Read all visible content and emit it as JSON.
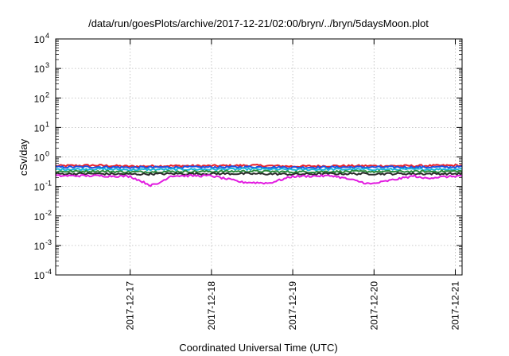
{
  "chart_data": {
    "type": "line",
    "title": "/data/run/goesPlots/archive/2017-12-21/02:00/bryn/../bryn/5daysMoon.plot",
    "xlabel": "Coordinated Universal Time (UTC)",
    "ylabel": "cSv/day",
    "yscale": "log",
    "ylim": [
      0.0001,
      10000
    ],
    "xlim": [
      "2017-12-16T02:00",
      "2017-12-21T02:00"
    ],
    "y_ticks": [
      {
        "base": "10",
        "exp": "-4",
        "value": 0.0001
      },
      {
        "base": "10",
        "exp": "-3",
        "value": 0.001
      },
      {
        "base": "10",
        "exp": "-2",
        "value": 0.01
      },
      {
        "base": "10",
        "exp": "-1",
        "value": 0.1
      },
      {
        "base": "10",
        "exp": "0",
        "value": 1
      },
      {
        "base": "10",
        "exp": "1",
        "value": 10
      },
      {
        "base": "10",
        "exp": "2",
        "value": 100
      },
      {
        "base": "10",
        "exp": "3",
        "value": 1000
      },
      {
        "base": "10",
        "exp": "4",
        "value": 10000
      }
    ],
    "x_ticks": [
      {
        "label": "2017-12-17",
        "value": "2017-12-17T00:00"
      },
      {
        "label": "2017-12-18",
        "value": "2017-12-18T00:00"
      },
      {
        "label": "2017-12-19",
        "value": "2017-12-19T00:00"
      },
      {
        "label": "2017-12-20",
        "value": "2017-12-20T00:00"
      },
      {
        "label": "2017-12-21",
        "value": "2017-12-21T00:00"
      }
    ],
    "grid": true,
    "legend": "none",
    "series": [
      {
        "color": "#e8202a",
        "approx_level": 0.5,
        "values": [
          [
            "2017-12-16T02:00",
            0.5
          ],
          [
            "2017-12-16T14:00",
            0.52
          ],
          [
            "2017-12-17T00:00",
            0.48
          ],
          [
            "2017-12-17T12:00",
            0.5
          ],
          [
            "2017-12-18T00:00",
            0.5
          ],
          [
            "2017-12-18T12:00",
            0.52
          ],
          [
            "2017-12-19T00:00",
            0.48
          ],
          [
            "2017-12-19T12:00",
            0.5
          ],
          [
            "2017-12-20T00:00",
            0.5
          ],
          [
            "2017-12-20T12:00",
            0.5
          ],
          [
            "2017-12-21T02:00",
            0.52
          ]
        ]
      },
      {
        "color": "#1f4fe0",
        "approx_level": 0.45,
        "values": [
          [
            "2017-12-16T02:00",
            0.45
          ],
          [
            "2017-12-16T14:00",
            0.46
          ],
          [
            "2017-12-17T00:00",
            0.44
          ],
          [
            "2017-12-17T12:00",
            0.45
          ],
          [
            "2017-12-18T00:00",
            0.45
          ],
          [
            "2017-12-18T12:00",
            0.46
          ],
          [
            "2017-12-19T00:00",
            0.44
          ],
          [
            "2017-12-19T12:00",
            0.45
          ],
          [
            "2017-12-20T00:00",
            0.45
          ],
          [
            "2017-12-20T12:00",
            0.45
          ],
          [
            "2017-12-21T02:00",
            0.46
          ]
        ]
      },
      {
        "color": "#19b8d8",
        "approx_level": 0.38,
        "values": [
          [
            "2017-12-16T02:00",
            0.38
          ],
          [
            "2017-12-16T14:00",
            0.39
          ],
          [
            "2017-12-17T00:00",
            0.37
          ],
          [
            "2017-12-17T12:00",
            0.38
          ],
          [
            "2017-12-18T00:00",
            0.38
          ],
          [
            "2017-12-18T12:00",
            0.39
          ],
          [
            "2017-12-19T00:00",
            0.37
          ],
          [
            "2017-12-19T12:00",
            0.38
          ],
          [
            "2017-12-20T00:00",
            0.38
          ],
          [
            "2017-12-20T12:00",
            0.38
          ],
          [
            "2017-12-21T02:00",
            0.39
          ]
        ]
      },
      {
        "color": "#2a8a3a",
        "approx_level": 0.32,
        "values": [
          [
            "2017-12-16T02:00",
            0.32
          ],
          [
            "2017-12-16T14:00",
            0.33
          ],
          [
            "2017-12-17T00:00",
            0.31
          ],
          [
            "2017-12-17T12:00",
            0.32
          ],
          [
            "2017-12-18T00:00",
            0.32
          ],
          [
            "2017-12-18T12:00",
            0.33
          ],
          [
            "2017-12-19T00:00",
            0.31
          ],
          [
            "2017-12-19T12:00",
            0.32
          ],
          [
            "2017-12-20T00:00",
            0.32
          ],
          [
            "2017-12-20T12:00",
            0.32
          ],
          [
            "2017-12-21T02:00",
            0.33
          ]
        ]
      },
      {
        "color": "#2b2b2b",
        "approx_level": 0.27,
        "values": [
          [
            "2017-12-16T02:00",
            0.27
          ],
          [
            "2017-12-16T14:00",
            0.27
          ],
          [
            "2017-12-17T00:00",
            0.26
          ],
          [
            "2017-12-17T12:00",
            0.27
          ],
          [
            "2017-12-18T00:00",
            0.27
          ],
          [
            "2017-12-18T12:00",
            0.27
          ],
          [
            "2017-12-19T00:00",
            0.26
          ],
          [
            "2017-12-19T12:00",
            0.27
          ],
          [
            "2017-12-20T00:00",
            0.27
          ],
          [
            "2017-12-20T12:00",
            0.27
          ],
          [
            "2017-12-21T02:00",
            0.27
          ]
        ]
      },
      {
        "color": "#e21ae0",
        "approx_level": 0.23,
        "values": [
          [
            "2017-12-16T02:00",
            0.23
          ],
          [
            "2017-12-16T14:00",
            0.23
          ],
          [
            "2017-12-17T00:00",
            0.22
          ],
          [
            "2017-12-17T06:00",
            0.11
          ],
          [
            "2017-12-17T08:00",
            0.12
          ],
          [
            "2017-12-17T12:00",
            0.23
          ],
          [
            "2017-12-18T00:00",
            0.23
          ],
          [
            "2017-12-18T09:00",
            0.14
          ],
          [
            "2017-12-18T17:00",
            0.13
          ],
          [
            "2017-12-19T00:00",
            0.22
          ],
          [
            "2017-12-19T12:00",
            0.23
          ],
          [
            "2017-12-19T23:00",
            0.12
          ],
          [
            "2017-12-20T12:00",
            0.23
          ],
          [
            "2017-12-20T14:00",
            0.19
          ],
          [
            "2017-12-21T02:00",
            0.23
          ]
        ]
      }
    ]
  }
}
